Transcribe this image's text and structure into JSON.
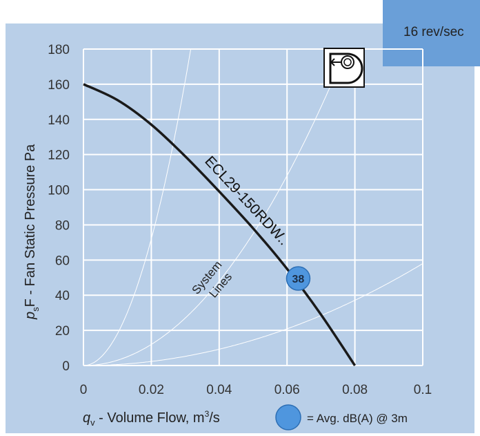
{
  "colors": {
    "background": "#b9cfe8",
    "grid": "#ffffff",
    "fan_curve": "#1a1a1a",
    "system_lines": "#ffffff",
    "badge": "#6a9fd8",
    "marker": "#4f96de",
    "marker_edge": "#2c6eb4"
  },
  "speed_badge": "16 rev/sec",
  "icon": "centrifugal-fan-icon",
  "chart_data": {
    "type": "line",
    "xlabel": "q",
    "xlabel_sub": "v",
    "xlabel_rest": " - Volume Flow, m",
    "xlabel_sup": "3",
    "xlabel_end": "/s",
    "ylabel": "p",
    "ylabel_sub": "s",
    "ylabel_rest": "F - Fan Static Pressure  Pa",
    "xlim": [
      0,
      0.1
    ],
    "ylim": [
      0,
      180
    ],
    "x_ticks": [
      0,
      0.02,
      0.04,
      0.06,
      0.08,
      0.1
    ],
    "x_tick_labels": [
      "0",
      "0.02",
      "0.04",
      "0.06",
      "0.08",
      "0.1"
    ],
    "y_ticks": [
      0,
      20,
      40,
      60,
      80,
      100,
      120,
      140,
      160,
      180
    ],
    "y_tick_labels": [
      "0",
      "20",
      "40",
      "60",
      "80",
      "100",
      "120",
      "140",
      "160",
      "180"
    ],
    "grid": true,
    "series": [
      {
        "name": "ECL29-150RDW..",
        "x": [
          0,
          0.01,
          0.02,
          0.03,
          0.04,
          0.05,
          0.06,
          0.07,
          0.08
        ],
        "y": [
          160,
          151,
          137,
          119,
          99,
          78,
          55,
          29,
          0
        ]
      }
    ],
    "system_lines": {
      "label_line1": "System",
      "label_line2": "Lines",
      "k": [
        180000,
        30000,
        5800
      ]
    },
    "operating_point": {
      "x": 0.0633,
      "y": 49.5,
      "label": "38"
    },
    "legend": {
      "text": "= Avg. dB(A) @ 3m",
      "position": "bottom-right"
    }
  }
}
